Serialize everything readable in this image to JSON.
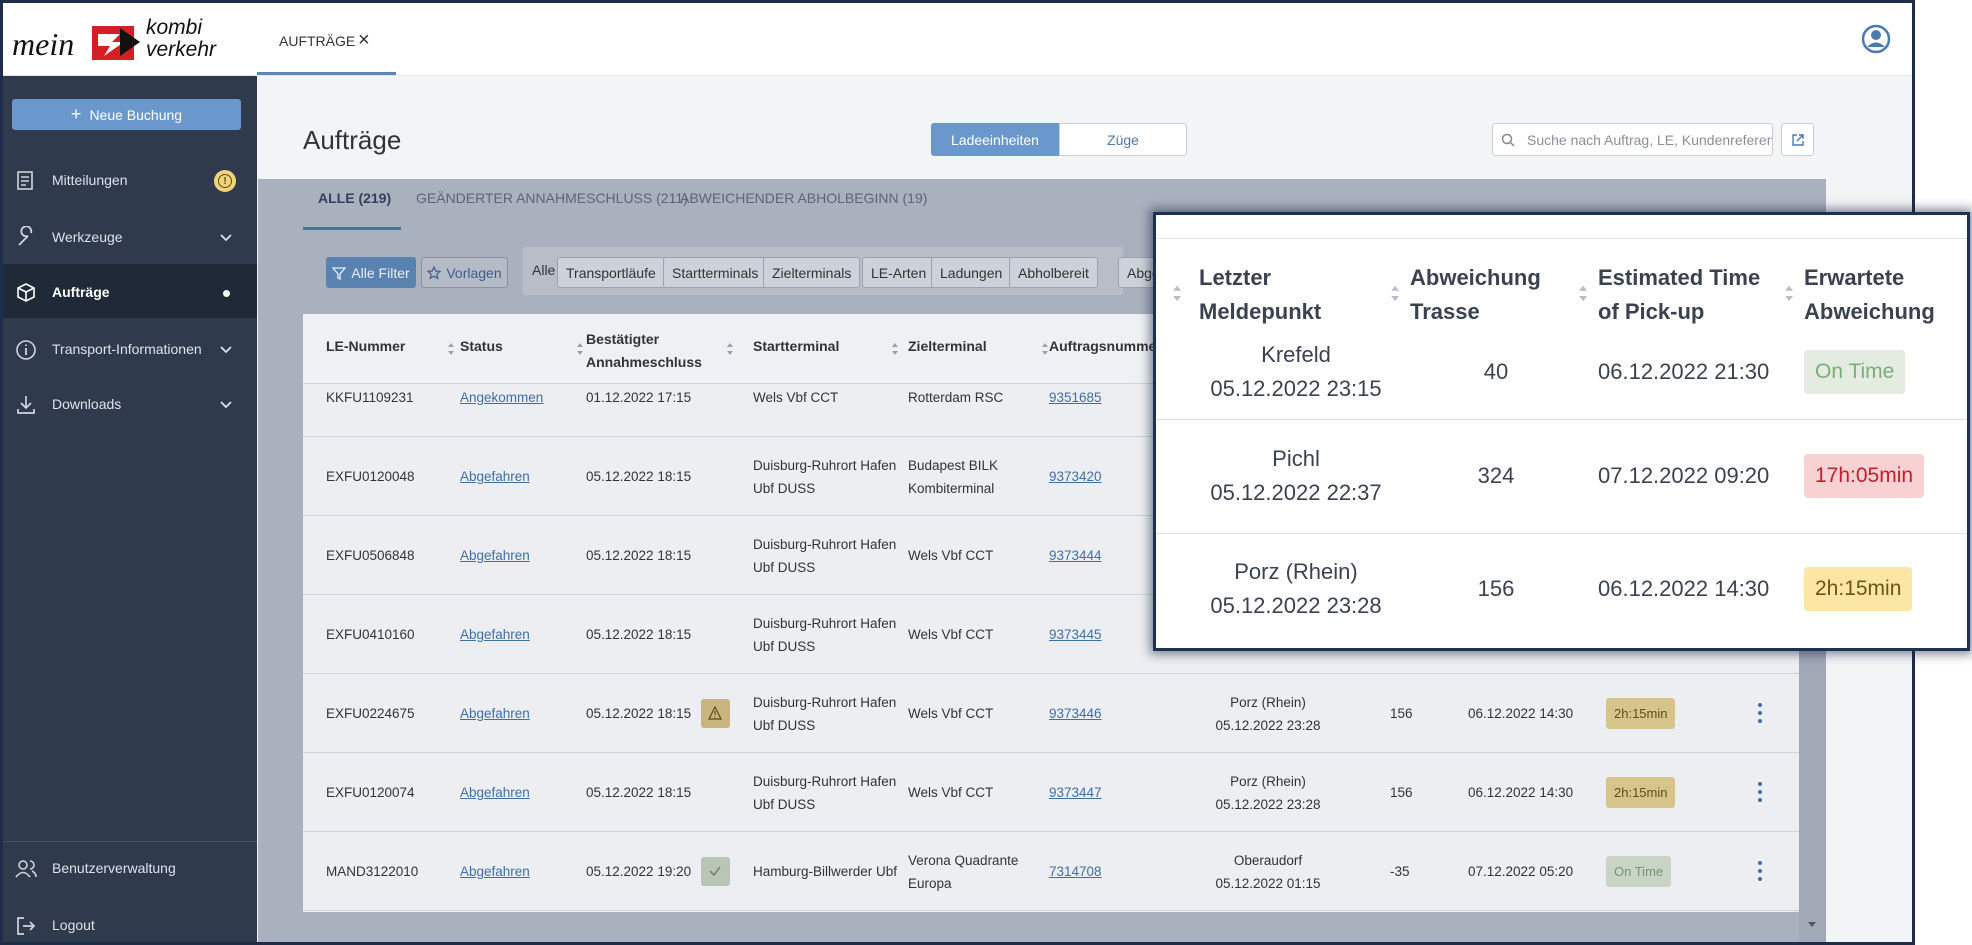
{
  "header": {
    "logo": {
      "mein": "mein",
      "kombi": "kombi",
      "verkehr": "verkehr"
    },
    "tab": "AUFTRÄGE",
    "tab_close": "×"
  },
  "sidebar": {
    "new_booking": {
      "icon": "+",
      "label": "Neue Buchung"
    },
    "items": [
      {
        "label": "Mitteilungen",
        "badge": "!"
      },
      {
        "label": "Werkzeuge",
        "expandable": true
      },
      {
        "label": "Aufträge",
        "active": true
      },
      {
        "label": "Transport-Informationen",
        "expandable": true
      },
      {
        "label": "Downloads",
        "expandable": true
      }
    ],
    "footer": [
      "Benutzerverwaltung",
      "Logout"
    ]
  },
  "page": {
    "title": "Aufträge",
    "view_toggle": [
      "Ladeeinheiten",
      "Züge"
    ],
    "search_placeholder": "Suche nach Auftrag, LE, Kundenreferenz"
  },
  "tabs": [
    "ALLE (219)",
    "GEÄNDERTER ANNAHMESCHLUSS (211)",
    "ABWEICHENDER ABHOLBEGINN (19)"
  ],
  "filters": {
    "all_filters": "Alle Filter",
    "templates": "Vorlagen",
    "all": "Alle",
    "chips": [
      "Transportläufe",
      "Startterminals",
      "Zielterminals",
      "LE-Arten",
      "Ladungen",
      "Abholbereit",
      "Abge"
    ]
  },
  "table": {
    "columns": [
      "LE-Nummer",
      "Status",
      "Bestätigter Annahmeschluss",
      "Startterminal",
      "Zielterminal",
      "Auftragsnumme"
    ],
    "rows": [
      {
        "le": "KKFU1109231",
        "status": "Angekommen",
        "confirmed": "01.12.2022 17:15",
        "start": "Wels Vbf CCT",
        "target": "Rotterdam RSC",
        "order": "9351685"
      },
      {
        "le": "EXFU0120048",
        "status": "Abgefahren",
        "confirmed": "05.12.2022 18:15",
        "start": "Duisburg-Ruhrort Hafen Ubf DUSS",
        "target": "Budapest BILK Kombiterminal",
        "order": "9373420"
      },
      {
        "le": "EXFU0506848",
        "status": "Abgefahren",
        "confirmed": "05.12.2022 18:15",
        "start": "Duisburg-Ruhrort Hafen Ubf DUSS",
        "target": "Wels Vbf CCT",
        "order": "9373444"
      },
      {
        "le": "EXFU0410160",
        "status": "Abgefahren",
        "confirmed": "05.12.2022 18:15",
        "start": "Duisburg-Ruhrort Hafen Ubf DUSS",
        "target": "Wels Vbf CCT",
        "order": "9373445"
      },
      {
        "le": "EXFU0224675",
        "status": "Abgefahren",
        "confirmed": "05.12.2022 18:15",
        "flag": "warning",
        "start": "Duisburg-Ruhrort Hafen Ubf DUSS",
        "target": "Wels Vbf CCT",
        "order": "9373446",
        "last_point": "Porz (Rhein)",
        "last_time": "05.12.2022 23:28",
        "deviation": "156",
        "etp": "06.12.2022 14:30",
        "expected": "2h:15min",
        "tone": "yellow"
      },
      {
        "le": "EXFU0120074",
        "status": "Abgefahren",
        "confirmed": "05.12.2022 18:15",
        "start": "Duisburg-Ruhrort Hafen Ubf DUSS",
        "target": "Wels Vbf CCT",
        "order": "9373447",
        "last_point": "Porz (Rhein)",
        "last_time": "05.12.2022 23:28",
        "deviation": "156",
        "etp": "06.12.2022 14:30",
        "expected": "2h:15min",
        "tone": "yellow"
      },
      {
        "le": "MAND3122010",
        "status": "Abgefahren",
        "confirmed": "05.12.2022 19:20",
        "flag": "check",
        "start": "Hamburg-Billwerder Ubf",
        "target": "Verona Quadrante Europa",
        "order": "7314708",
        "last_point": "Oberaudorf",
        "last_time": "05.12.2022 01:15",
        "deviation": "-35",
        "etp": "07.12.2022 05:20",
        "expected": "On Time",
        "tone": "green"
      }
    ]
  },
  "popup": {
    "columns": [
      [
        "Letzter",
        "Meldepunkt"
      ],
      [
        "Abweichung",
        "Trasse"
      ],
      [
        "Estimated Time",
        "of Pick-up"
      ],
      [
        "Erwartete",
        "Abweichung"
      ]
    ],
    "rows": [
      {
        "last_point": "Krefeld",
        "last_time": "05.12.2022 23:15",
        "deviation": "40",
        "etp": "06.12.2022 21:30",
        "expected": "On Time",
        "tone": "green"
      },
      {
        "last_point": "Pichl",
        "last_time": "05.12.2022 22:37",
        "deviation": "324",
        "etp": "07.12.2022 09:20",
        "expected": "17h:05min",
        "tone": "red"
      },
      {
        "last_point": "Porz (Rhein)",
        "last_time": "05.12.2022 23:28",
        "deviation": "156",
        "etp": "06.12.2022 14:30",
        "expected": "2h:15min",
        "tone": "yellow"
      }
    ]
  }
}
